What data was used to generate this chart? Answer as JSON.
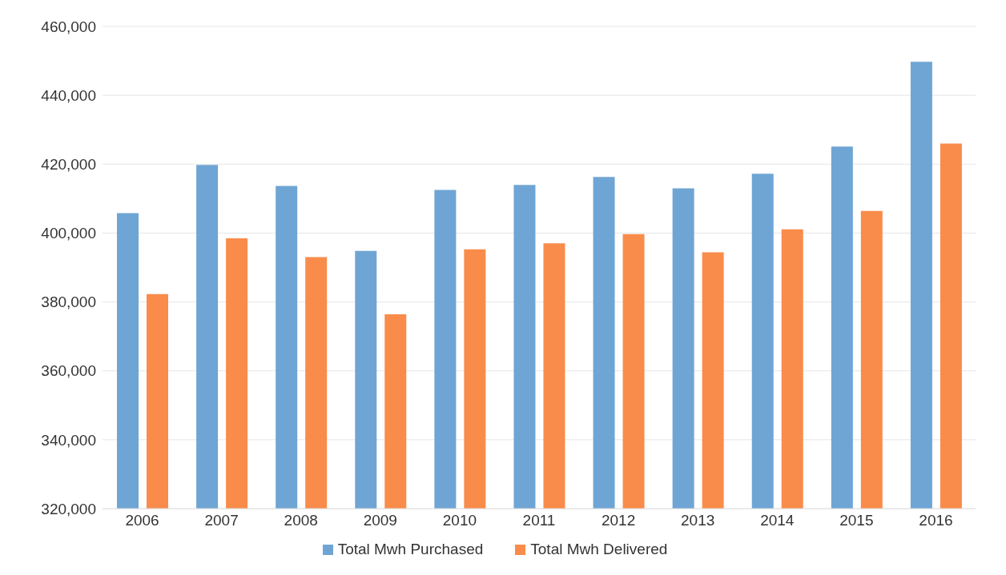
{
  "chart_data": {
    "type": "bar",
    "categories": [
      "2006",
      "2007",
      "2008",
      "2009",
      "2010",
      "2011",
      "2012",
      "2013",
      "2014",
      "2015",
      "2016"
    ],
    "series": [
      {
        "name": "Total Mwh Purchased",
        "color": "#6fa5d4",
        "values": [
          405800,
          419800,
          413700,
          394800,
          412500,
          414000,
          416300,
          413000,
          417200,
          425100,
          449700
        ]
      },
      {
        "name": "Total Mwh Delivered",
        "color": "#f98c4a",
        "values": [
          382300,
          398500,
          393000,
          376400,
          395300,
          397000,
          399700,
          394400,
          401100,
          406400,
          426000
        ]
      }
    ],
    "ylim": [
      320000,
      460000
    ],
    "yticks": [
      {
        "value": 320000,
        "label": "320,000"
      },
      {
        "value": 340000,
        "label": "340,000"
      },
      {
        "value": 360000,
        "label": "360,000"
      },
      {
        "value": 380000,
        "label": "380,000"
      },
      {
        "value": 400000,
        "label": "400,000"
      },
      {
        "value": 420000,
        "label": "420,000"
      },
      {
        "value": 440000,
        "label": "440,000"
      },
      {
        "value": 460000,
        "label": "460,000"
      }
    ],
    "grid": "y",
    "legend": "bottom"
  }
}
